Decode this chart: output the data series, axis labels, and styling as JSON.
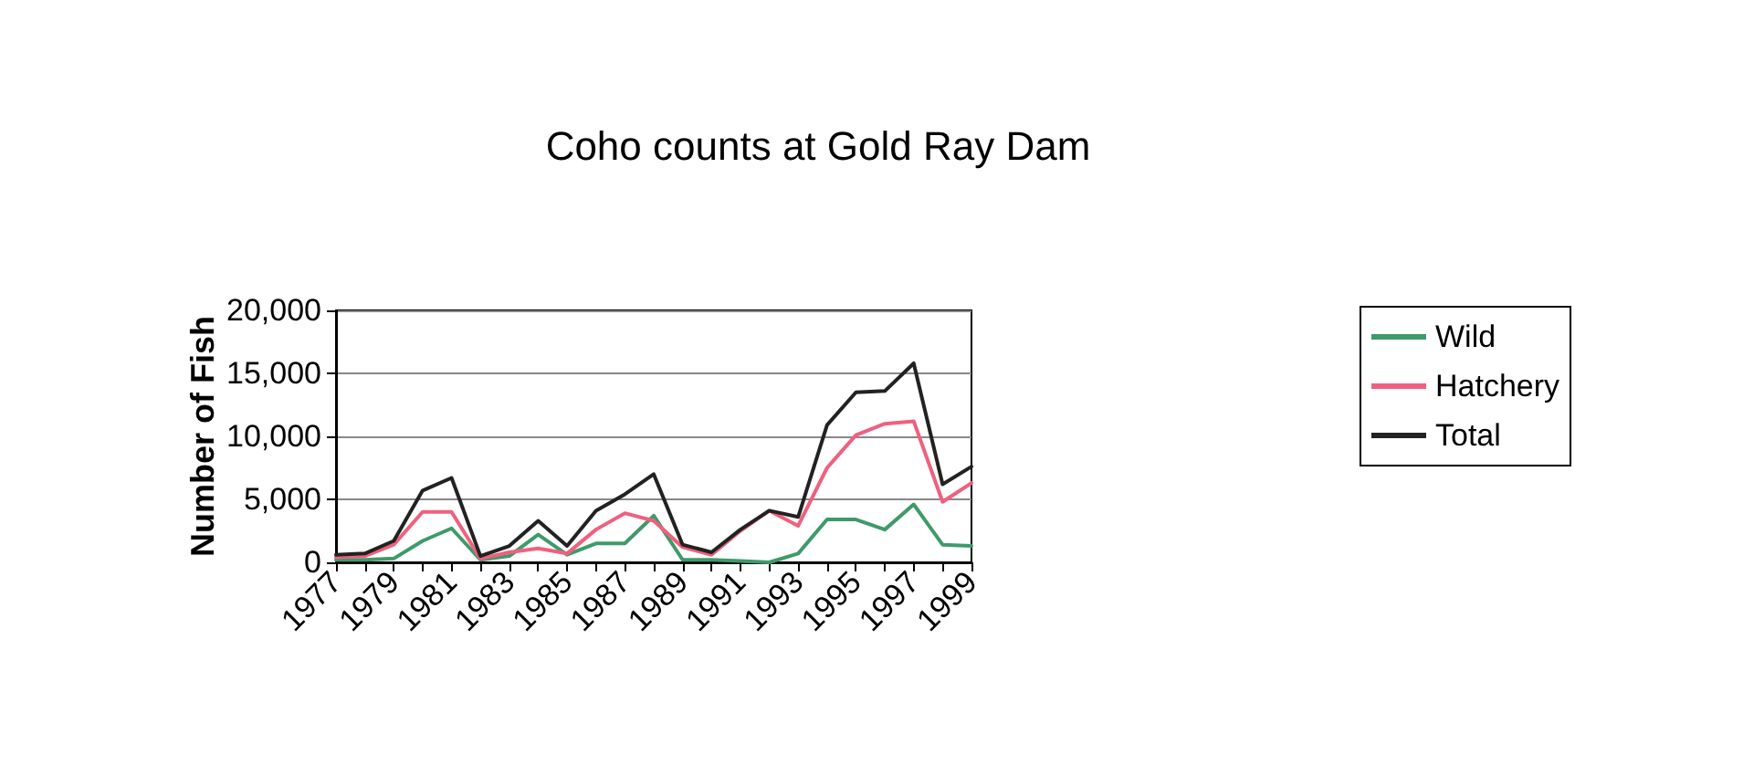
{
  "chart_data": {
    "type": "line",
    "title": "Coho counts at Gold Ray Dam",
    "ylabel": "Number of Fish",
    "categories": [
      "1977",
      null,
      "1979",
      null,
      "1981",
      null,
      "1983",
      null,
      "1985",
      null,
      "1987",
      null,
      "1989",
      null,
      "1991",
      null,
      "1993",
      null,
      "1995",
      null,
      "1997",
      null,
      "1999"
    ],
    "series": [
      {
        "name": "Wild",
        "color": "#3f9a6a",
        "values": [
          200,
          200,
          300,
          1700,
          2700,
          200,
          500,
          2200,
          600,
          1500,
          1500,
          3700,
          200,
          200,
          100,
          0,
          700,
          3400,
          3400,
          2600,
          4600,
          1400,
          1300
        ]
      },
      {
        "name": "Hatchery",
        "color": "#f0607e",
        "values": [
          400,
          500,
          1400,
          4000,
          4000,
          300,
          800,
          1100,
          700,
          2600,
          3900,
          3300,
          1200,
          600,
          2500,
          4100,
          2900,
          7500,
          10100,
          11000,
          11200,
          4800,
          6300
        ]
      },
      {
        "name": "Total",
        "color": "#222222",
        "values": [
          600,
          700,
          1700,
          5700,
          6700,
          500,
          1300,
          3300,
          1300,
          4100,
          5400,
          7000,
          1400,
          800,
          2600,
          4100,
          3600,
          10900,
          13500,
          13600,
          15800,
          6200,
          7600
        ]
      }
    ],
    "ylim": [
      0,
      20000
    ],
    "yticks": [
      0,
      {
        "value": 5000,
        "label": "5,000"
      },
      {
        "value": 10000,
        "label": "10,000"
      },
      {
        "value": 15000,
        "label": "15,000"
      },
      {
        "value": 20000,
        "label": "20,000"
      }
    ],
    "grid": "y",
    "legend": "right",
    "marker": "none",
    "line_style": "solid"
  }
}
